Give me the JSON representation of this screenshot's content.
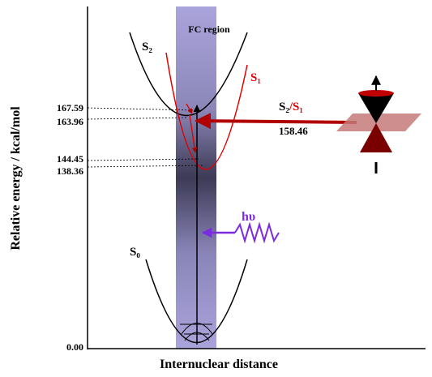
{
  "axes": {
    "y_label": "Relative energy / kcal/mol",
    "x_label": "Internuclear distance"
  },
  "energy_labels": [
    "167.59",
    "163.96",
    "144.45",
    "138.36",
    "0.00"
  ],
  "region_label": "FC region",
  "states": {
    "s2": "S₂",
    "s1": "S₁",
    "s0": "S₀"
  },
  "crossing": {
    "upper": "S₂",
    "lower": "/S₁",
    "energy": "158.46"
  },
  "photon": "hυ"
}
